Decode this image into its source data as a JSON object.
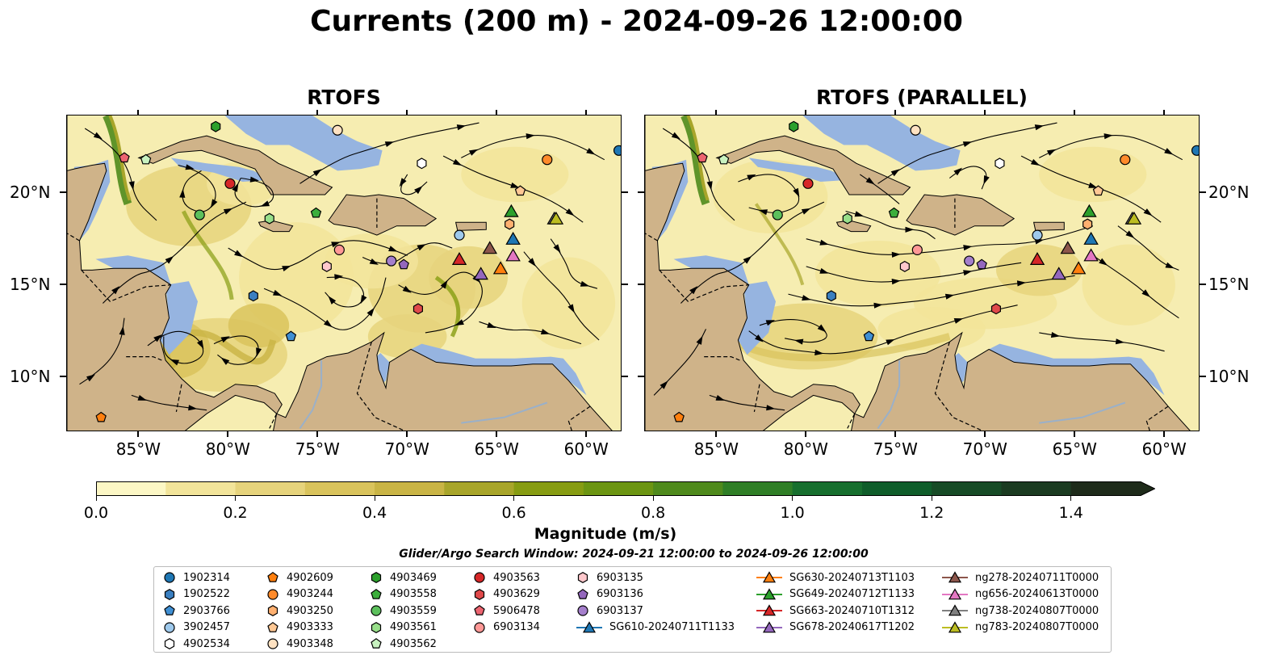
{
  "title": "Currents (200 m) - 2024-09-26 12:00:00",
  "panels": [
    {
      "id": "left",
      "title": "RTOFS"
    },
    {
      "id": "right",
      "title": "RTOFS (PARALLEL)"
    }
  ],
  "map_extent": {
    "lon": [
      -89,
      -58
    ],
    "lat": [
      7,
      24.2
    ]
  },
  "lon_ticks": [
    {
      "value": -85,
      "label": "85°W"
    },
    {
      "value": -80,
      "label": "80°W"
    },
    {
      "value": -75,
      "label": "75°W"
    },
    {
      "value": -70,
      "label": "70°W"
    },
    {
      "value": -65,
      "label": "65°W"
    },
    {
      "value": -60,
      "label": "60°W"
    }
  ],
  "lat_ticks": [
    {
      "value": 20,
      "label": "20°N"
    },
    {
      "value": 15,
      "label": "15°N"
    },
    {
      "value": 10,
      "label": "10°N"
    }
  ],
  "colorbar": {
    "label": "Magnitude (m/s)",
    "min": 0.0,
    "max": 1.5,
    "step": 0.1,
    "extend": "max",
    "tick_values": [
      0.0,
      0.2,
      0.4,
      0.6,
      0.8,
      1.0,
      1.2,
      1.4
    ],
    "tick_labels": [
      "0.0",
      "0.2",
      "0.4",
      "0.6",
      "0.8",
      "1.0",
      "1.2",
      "1.4"
    ],
    "colors": [
      "#fcf7c5",
      "#f2e49a",
      "#e6d37c",
      "#d9c35c",
      "#c9b445",
      "#a8a52a",
      "#879c12",
      "#6c9512",
      "#4f8a1c",
      "#2f7e26",
      "#176f2e",
      "#0f5d2a",
      "#174b26",
      "#1b3b21",
      "#1e2b1a"
    ]
  },
  "search_window": "Glider/Argo Search Window: 2024-09-21 12:00:00 to 2024-09-26 12:00:00",
  "colors": {
    "land": "#cfb389",
    "shelf_water": "#96b4e0",
    "ocean_low": "#f6edb1"
  },
  "legend": [
    {
      "label": "1902314",
      "marker": "circle",
      "color": "#1f77b4"
    },
    {
      "label": "1902522",
      "marker": "hexagon",
      "color": "#3a7fc0"
    },
    {
      "label": "2903766",
      "marker": "pentagon",
      "color": "#3f8fd3"
    },
    {
      "label": "3902457",
      "marker": "circle",
      "color": "#9ec9ec"
    },
    {
      "label": "4902534",
      "marker": "hexagon",
      "color": "#ffffff"
    },
    {
      "label": "4902609",
      "marker": "pentagon",
      "color": "#ff7f0e"
    },
    {
      "label": "4903244",
      "marker": "circle",
      "color": "#ff8a2a"
    },
    {
      "label": "4903250",
      "marker": "hexagon",
      "color": "#ffb070"
    },
    {
      "label": "4903333",
      "marker": "pentagon",
      "color": "#ffc894"
    },
    {
      "label": "4903348",
      "marker": "circle",
      "color": "#ffe2c2"
    },
    {
      "label": "4903469",
      "marker": "hexagon",
      "color": "#2ca02c"
    },
    {
      "label": "4903558",
      "marker": "pentagon",
      "color": "#3cae3c"
    },
    {
      "label": "4903559",
      "marker": "circle",
      "color": "#5cc05c"
    },
    {
      "label": "4903561",
      "marker": "hexagon",
      "color": "#98df8a"
    },
    {
      "label": "4903562",
      "marker": "pentagon",
      "color": "#c8f2c0"
    },
    {
      "label": "4903563",
      "marker": "circle",
      "color": "#d62728"
    },
    {
      "label": "4903629",
      "marker": "hexagon",
      "color": "#e0494a"
    },
    {
      "label": "5906478",
      "marker": "pentagon",
      "color": "#ec6470"
    },
    {
      "label": "6903134",
      "marker": "circle",
      "color": "#ff9896"
    },
    {
      "label": "6903135",
      "marker": "hexagon",
      "color": "#ffc8cc"
    },
    {
      "label": "6903136",
      "marker": "pentagon",
      "color": "#9467bd"
    },
    {
      "label": "6903137",
      "marker": "circle",
      "color": "#a57fcc"
    },
    {
      "label": "SG610-20240711T1133",
      "marker": "triangle",
      "color": "#1f77b4"
    },
    {
      "label": "SG630-20240713T1103",
      "marker": "triangle",
      "color": "#ff7f0e"
    },
    {
      "label": "SG649-20240712T1133",
      "marker": "triangle",
      "color": "#2ca02c"
    },
    {
      "label": "SG663-20240710T1312",
      "marker": "triangle",
      "color": "#d62728"
    },
    {
      "label": "SG678-20240617T1202",
      "marker": "triangle",
      "color": "#9467bd"
    },
    {
      "label": "ng278-20240711T0000",
      "marker": "triangle",
      "color": "#8c564b"
    },
    {
      "label": "ng656-20240613T0000",
      "marker": "triangle",
      "color": "#e377c2"
    },
    {
      "label": "ng738-20240807T0000",
      "marker": "triangle",
      "color": "#7f7f7f"
    },
    {
      "label": "ng783-20240807T0000",
      "marker": "triangle",
      "color": "#bcbd22"
    }
  ],
  "platforms": [
    {
      "id": "1902314",
      "lon": -58.2,
      "lat": 22.3
    },
    {
      "id": "1902522",
      "lon": -78.6,
      "lat": 14.4
    },
    {
      "id": "2903766",
      "lon": -76.5,
      "lat": 12.2
    },
    {
      "id": "3902457",
      "lon": -67.1,
      "lat": 17.7
    },
    {
      "id": "4902534",
      "lon": -69.2,
      "lat": 21.6
    },
    {
      "id": "4902609",
      "lon": -87.1,
      "lat": 7.8
    },
    {
      "id": "4903244",
      "lon": -62.2,
      "lat": 21.8
    },
    {
      "id": "4903250",
      "lon": -64.3,
      "lat": 18.3
    },
    {
      "id": "4903333",
      "lon": -63.7,
      "lat": 20.1
    },
    {
      "id": "4903348",
      "lon": -73.9,
      "lat": 23.4
    },
    {
      "id": "4903469",
      "lon": -80.7,
      "lat": 23.6
    },
    {
      "id": "4903558",
      "lon": -75.1,
      "lat": 18.9
    },
    {
      "id": "4903559",
      "lon": -81.6,
      "lat": 18.8
    },
    {
      "id": "4903561",
      "lon": -77.7,
      "lat": 18.6
    },
    {
      "id": "4903562",
      "lon": -84.6,
      "lat": 21.8
    },
    {
      "id": "4903563",
      "lon": -79.9,
      "lat": 20.5
    },
    {
      "id": "4903629",
      "lon": -69.4,
      "lat": 13.7
    },
    {
      "id": "5906478",
      "lon": -85.8,
      "lat": 21.9
    },
    {
      "id": "6903134",
      "lon": -73.8,
      "lat": 16.9
    },
    {
      "id": "6903135",
      "lon": -74.5,
      "lat": 16.0
    },
    {
      "id": "6903136",
      "lon": -70.2,
      "lat": 16.1
    },
    {
      "id": "6903137",
      "lon": -70.9,
      "lat": 16.3
    }
  ],
  "gliders": [
    {
      "id": "SG610-20240711T1133",
      "lon": -64.1,
      "lat": 17.5
    },
    {
      "id": "SG630-20240713T1103",
      "lon": -64.8,
      "lat": 15.9
    },
    {
      "id": "SG649-20240712T1133",
      "lon": -64.2,
      "lat": 19.0
    },
    {
      "id": "SG663-20240710T1312",
      "lon": -67.1,
      "lat": 16.4
    },
    {
      "id": "SG678-20240617T1202",
      "lon": -65.9,
      "lat": 15.6
    },
    {
      "id": "ng278-20240711T0000",
      "lon": -65.4,
      "lat": 17.0
    },
    {
      "id": "ng656-20240613T0000",
      "lon": -64.1,
      "lat": 16.6
    },
    {
      "id": "ng738-20240807T0000",
      "lon": -61.8,
      "lat": 18.6
    },
    {
      "id": "ng783-20240807T0000",
      "lon": -61.7,
      "lat": 18.6
    }
  ]
}
